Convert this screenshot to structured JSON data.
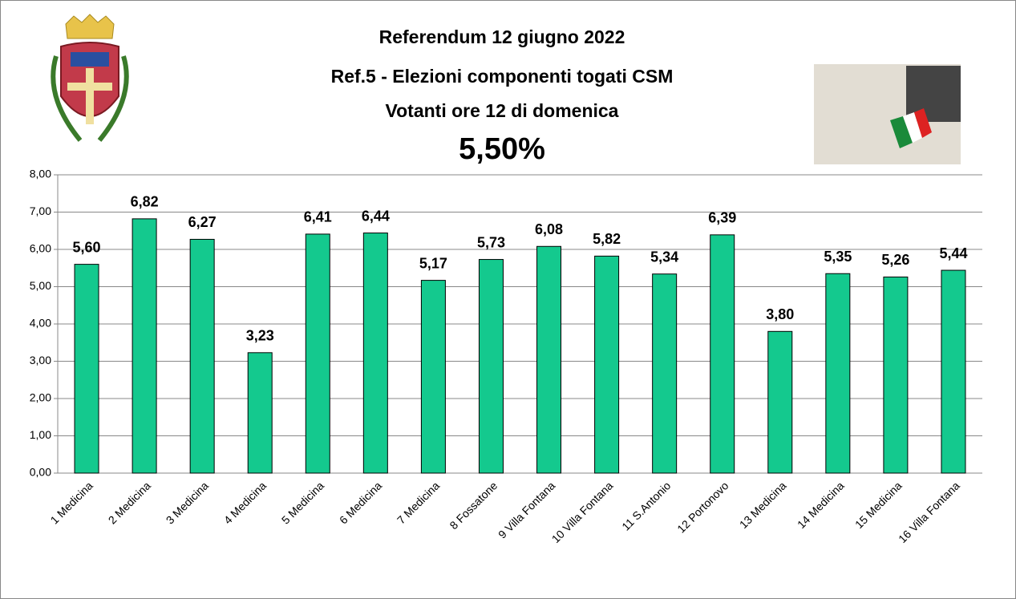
{
  "chart_data": {
    "type": "bar",
    "title": [
      "Referendum 12 giugno 2022",
      "Ref.5 - Elezioni componenti togati CSM",
      "Votanti ore 12 di domenica"
    ],
    "annotation": "5,50%",
    "categories": [
      "1 Medicina",
      "2 Medicina",
      "3 Medicina",
      "4 Medicina",
      "5 Medicina",
      "6 Medicina",
      "7 Medicina",
      "8 Fossatone",
      "9 Villa Fontana",
      "10 Villa Fontana",
      "11 S.Antonio",
      "12 Portonovo",
      "13 Medicina",
      "14 Medicina",
      "15 Medicina",
      "16 Villa Fontana"
    ],
    "values": [
      5.6,
      6.82,
      6.27,
      3.23,
      6.41,
      6.44,
      5.17,
      5.73,
      6.08,
      5.82,
      5.34,
      6.39,
      3.8,
      5.35,
      5.26,
      5.44
    ],
    "value_labels": [
      "5,60",
      "6,82",
      "6,27",
      "3,23",
      "6,41",
      "6,44",
      "5,17",
      "5,73",
      "6,08",
      "5,82",
      "5,34",
      "6,39",
      "3,80",
      "5,35",
      "5,26",
      "5,44"
    ],
    "color": "#14c98e",
    "ylim": [
      0,
      8
    ],
    "yticks": [
      {
        "value": 0,
        "label": "0,00"
      },
      {
        "value": 1,
        "label": "1,00"
      },
      {
        "value": 2,
        "label": "2,00"
      },
      {
        "value": 3,
        "label": "3,00"
      },
      {
        "value": 4,
        "label": "4,00"
      },
      {
        "value": 5,
        "label": "5,00"
      },
      {
        "value": 6,
        "label": "6,00"
      },
      {
        "value": 7,
        "label": "7,00"
      },
      {
        "value": 8,
        "label": "8,00"
      }
    ],
    "grid": true
  }
}
